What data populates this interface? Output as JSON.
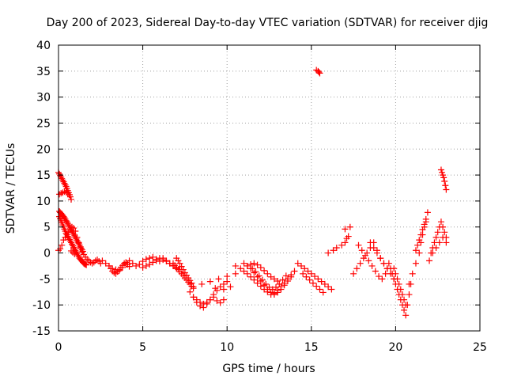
{
  "chart_data": {
    "type": "scatter",
    "title": "Day 200 of 2023, Sidereal Day-to-day VTEC variation (SDTVAR) for receiver djig",
    "xlabel": "GPS time / hours",
    "ylabel": "SDTVAR / TECUs",
    "xlim": [
      0,
      25
    ],
    "ylim": [
      -15,
      40
    ],
    "xticks": [
      0,
      5,
      10,
      15,
      20,
      25
    ],
    "yticks": [
      -15,
      -10,
      -5,
      0,
      5,
      10,
      15,
      20,
      25,
      30,
      35,
      40
    ],
    "grid": true,
    "marker": "+",
    "color": "#ff0000",
    "series": [
      {
        "name": "SDTVAR",
        "x": [
          0.0,
          0.05,
          0.1,
          0.15,
          0.2,
          0.25,
          0.3,
          0.35,
          0.4,
          0.45,
          0.5,
          0.55,
          0.6,
          0.65,
          0.7,
          0.75,
          0.05,
          0.1,
          0.15,
          0.2,
          0.25,
          0.3,
          0.35,
          0.4,
          0.45,
          0.5,
          0.55,
          0.6,
          0.65,
          0.7,
          0.75,
          0.8,
          0.85,
          0.9,
          0.95,
          1.0,
          1.05,
          1.1,
          1.15,
          1.2,
          1.25,
          1.3,
          1.35,
          1.4,
          1.45,
          0.05,
          0.1,
          0.15,
          0.2,
          0.25,
          0.3,
          0.35,
          0.4,
          0.45,
          0.5,
          0.55,
          0.6,
          0.65,
          0.7,
          0.75,
          0.8,
          0.85,
          0.9,
          0.95,
          1.0,
          1.05,
          1.1,
          1.15,
          1.2,
          1.25,
          1.3,
          1.35,
          1.4,
          1.45,
          1.5,
          1.55,
          1.6,
          1.65,
          0.0,
          0.1,
          0.2,
          0.3,
          0.4,
          0.5,
          0.6,
          0.7,
          0.8,
          0.9,
          1.0,
          1.1,
          1.2,
          1.3,
          1.4,
          1.5,
          1.6,
          1.7,
          1.8,
          1.9,
          2.0,
          2.1,
          2.2,
          2.3,
          2.4,
          2.5,
          0.05,
          0.15,
          0.25,
          0.35,
          0.45,
          0.55,
          0.65,
          0.75,
          0.85,
          0.95,
          2.6,
          2.8,
          3.0,
          3.2,
          3.4,
          3.6,
          3.8,
          4.0,
          4.2,
          4.4,
          4.6,
          4.8,
          5.0,
          5.2,
          5.4,
          5.6,
          5.8,
          6.0,
          6.2,
          6.4,
          6.6,
          6.8,
          7.0,
          3.0,
          3.1,
          3.2,
          3.3,
          3.4,
          3.5,
          3.6,
          3.7,
          3.8,
          3.9,
          4.0,
          4.1,
          4.2,
          5.0,
          5.2,
          5.4,
          5.6,
          5.8,
          6.0,
          6.2,
          6.4,
          6.6,
          6.8,
          7.0,
          7.2,
          7.0,
          7.1,
          7.2,
          7.3,
          7.4,
          7.5,
          7.6,
          7.7,
          7.8,
          7.9,
          8.0,
          6.8,
          6.9,
          7.0,
          7.1,
          7.2,
          7.3,
          7.4,
          7.5,
          7.6,
          7.7,
          7.8,
          7.9,
          8.0,
          7.8,
          8.0,
          8.2,
          8.4,
          8.6,
          8.8,
          9.0,
          9.2,
          9.4,
          9.6,
          9.8,
          10.0,
          8.0,
          8.2,
          8.4,
          8.6,
          8.8,
          9.0,
          9.2,
          9.4,
          9.6,
          9.8,
          8.5,
          9.0,
          9.5,
          10.0,
          10.5,
          10.2,
          9.8,
          9.3,
          10.5,
          10.8,
          11.0,
          11.2,
          11.4,
          11.6,
          11.8,
          12.0,
          12.2,
          12.4,
          12.6,
          12.8,
          13.0,
          13.2,
          13.4,
          13.6,
          13.8,
          14.0,
          11.0,
          11.2,
          11.4,
          11.6,
          11.8,
          12.0,
          12.2,
          12.4,
          12.6,
          12.8,
          13.0,
          13.2,
          13.4,
          13.6,
          13.8,
          11.5,
          11.7,
          11.9,
          12.1,
          12.3,
          12.5,
          12.7,
          12.9,
          13.1,
          13.3,
          13.5,
          11.2,
          11.4,
          11.6,
          11.8,
          12.0,
          12.2,
          12.4,
          12.6,
          12.8,
          13.0,
          14.2,
          14.4,
          14.6,
          14.8,
          15.0,
          15.2,
          15.4,
          15.6,
          15.8,
          16.0,
          16.2,
          14.5,
          14.7,
          14.9,
          15.1,
          15.3,
          15.5,
          15.7,
          15.3,
          15.4,
          15.45,
          15.5,
          16.0,
          16.3,
          16.5,
          16.8,
          17.0,
          17.1,
          17.2,
          17.0,
          17.3,
          17.5,
          17.7,
          17.9,
          18.1,
          18.3,
          18.5,
          18.7,
          18.9,
          19.1,
          19.3,
          19.5,
          17.8,
          18.0,
          18.2,
          18.4,
          18.6,
          18.8,
          19.0,
          19.2,
          19.4,
          18.5,
          18.7,
          18.9,
          19.1,
          19.3,
          19.5,
          19.7,
          19.9,
          19.6,
          19.7,
          19.8,
          19.9,
          20.0,
          20.1,
          20.2,
          20.3,
          20.4,
          20.5,
          20.6,
          20.7,
          20.8,
          20.9,
          19.9,
          20.0,
          20.1,
          20.2,
          20.3,
          20.4,
          20.5,
          20.6,
          20.8,
          21.0,
          21.2,
          21.4,
          21.5,
          21.6,
          21.7,
          21.8,
          21.9,
          21.2,
          21.3,
          21.4,
          21.5,
          21.6,
          21.7,
          21.8,
          22.0,
          22.1,
          22.2,
          22.3,
          22.4,
          22.5,
          22.6,
          22.7,
          22.8,
          22.9,
          23.0,
          22.2,
          22.4,
          22.6,
          22.8,
          23.0,
          22.7,
          22.75,
          22.8,
          22.85,
          22.9,
          22.95,
          23.0
        ],
        "y": [
          15.5,
          15.2,
          14.9,
          14.6,
          14.3,
          14.0,
          13.7,
          13.4,
          13.1,
          12.8,
          12.4,
          12.0,
          11.6,
          11.2,
          10.8,
          10.3,
          8.0,
          7.8,
          7.6,
          7.4,
          7.2,
          7.0,
          6.8,
          6.5,
          6.2,
          6.0,
          5.7,
          5.4,
          5.1,
          4.8,
          4.5,
          4.2,
          3.9,
          3.6,
          3.3,
          3.0,
          2.7,
          2.4,
          2.1,
          1.8,
          1.5,
          1.2,
          0.9,
          0.6,
          0.3,
          7.0,
          6.6,
          6.2,
          5.8,
          5.4,
          5.0,
          4.6,
          4.2,
          3.8,
          3.5,
          3.2,
          2.9,
          2.6,
          2.3,
          2.0,
          1.7,
          1.4,
          1.1,
          0.8,
          0.5,
          0.2,
          -0.1,
          -0.4,
          -0.7,
          -1.0,
          -1.2,
          -1.4,
          -1.6,
          -1.8,
          -2.0,
          -2.1,
          -2.2,
          -2.3,
          0.5,
          0.8,
          1.5,
          2.5,
          3.0,
          3.5,
          4.0,
          4.5,
          5.0,
          4.8,
          4.2,
          3.0,
          2.0,
          1.0,
          0.2,
          -0.3,
          -0.8,
          -1.2,
          -1.5,
          -1.8,
          -2.0,
          -1.8,
          -1.5,
          -1.3,
          -1.6,
          -2.0,
          11.3,
          11.5,
          11.6,
          11.8,
          11.7,
          11.5,
          11.2,
          0.4,
          0.1,
          -0.2,
          -1.5,
          -2.0,
          -2.5,
          -3.0,
          -3.2,
          -3.4,
          -2.8,
          -2.2,
          -1.5,
          -2.0,
          -2.5,
          -2.2,
          -1.6,
          -1.2,
          -1.0,
          -0.8,
          -1.2,
          -1.6,
          -1.0,
          -1.5,
          -2.0,
          -2.5,
          -3.0,
          -2.5,
          -3.0,
          -3.5,
          -3.8,
          -4.0,
          -3.6,
          -3.2,
          -2.8,
          -2.4,
          -2.0,
          -1.8,
          -2.2,
          -2.6,
          -2.8,
          -2.5,
          -2.2,
          -1.8,
          -1.5,
          -1.0,
          -1.3,
          -1.6,
          -2.0,
          -2.4,
          -2.8,
          -3.2,
          -1.0,
          -1.5,
          -2.0,
          -2.6,
          -3.2,
          -3.8,
          -4.3,
          -4.8,
          -5.3,
          -5.8,
          -6.5,
          -2.0,
          -2.4,
          -2.8,
          -3.2,
          -3.6,
          -4.0,
          -4.4,
          -4.8,
          -5.2,
          -5.6,
          -6.0,
          -6.4,
          -6.8,
          -7.5,
          -8.5,
          -9.5,
          -10.2,
          -10.5,
          -9.8,
          -9.0,
          -8.0,
          -7.2,
          -6.5,
          -6.0,
          -5.5,
          -8.5,
          -9.0,
          -9.5,
          -9.8,
          -9.5,
          -9.0,
          -8.5,
          -9.2,
          -9.6,
          -9.0,
          -6.0,
          -5.5,
          -5.0,
          -4.5,
          -4.0,
          -6.5,
          -7.0,
          -6.8,
          -2.5,
          -3.0,
          -3.5,
          -4.0,
          -4.6,
          -5.2,
          -5.8,
          -6.4,
          -7.0,
          -7.5,
          -8.0,
          -7.8,
          -7.2,
          -6.5,
          -5.8,
          -5.0,
          -4.2,
          -3.5,
          -2.0,
          -2.5,
          -3.0,
          -3.8,
          -4.6,
          -5.4,
          -6.2,
          -7.0,
          -7.6,
          -8.0,
          -7.6,
          -7.0,
          -6.2,
          -5.4,
          -4.6,
          -3.0,
          -3.6,
          -4.4,
          -5.2,
          -6.0,
          -6.6,
          -7.0,
          -6.6,
          -6.0,
          -5.2,
          -4.4,
          -2.5,
          -2.2,
          -2.0,
          -2.3,
          -2.8,
          -3.4,
          -4.0,
          -4.6,
          -5.0,
          -5.4,
          -2.0,
          -2.5,
          -3.0,
          -3.5,
          -4.0,
          -4.5,
          -5.0,
          -5.5,
          -6.0,
          -6.5,
          -7.0,
          -4.0,
          -4.6,
          -5.2,
          -5.8,
          -6.4,
          -7.0,
          -7.6,
          35.2,
          35.0,
          34.8,
          34.6,
          0.0,
          0.5,
          1.0,
          1.5,
          2.0,
          2.8,
          3.2,
          4.6,
          5.0,
          -4.0,
          -3.0,
          -2.0,
          -1.0,
          0.0,
          1.0,
          2.0,
          0.5,
          -1.0,
          -2.0,
          -3.0,
          1.5,
          0.5,
          -0.5,
          -1.5,
          -2.5,
          -3.5,
          -4.5,
          -5.0,
          -4.0,
          2.0,
          1.0,
          0.0,
          -1.0,
          -2.0,
          -3.0,
          -4.0,
          -5.0,
          -2.0,
          -3.0,
          -4.0,
          -5.0,
          -6.0,
          -7.0,
          -8.0,
          -9.0,
          -10.0,
          -11.0,
          -12.0,
          -10.0,
          -8.0,
          -6.0,
          -3.0,
          -4.0,
          -5.0,
          -6.0,
          -7.0,
          -8.0,
          -9.0,
          -10.0,
          -6.0,
          -4.0,
          -2.0,
          0.0,
          2.0,
          3.5,
          5.0,
          6.5,
          7.8,
          0.5,
          1.5,
          2.5,
          3.5,
          4.5,
          5.5,
          6.0,
          -1.5,
          0.0,
          1.0,
          2.0,
          3.0,
          4.0,
          5.0,
          6.0,
          5.0,
          4.0,
          3.0,
          0.0,
          1.0,
          2.0,
          3.0,
          2.0,
          16.0,
          15.5,
          15.0,
          14.5,
          13.8,
          13.0,
          12.2
        ]
      }
    ]
  }
}
